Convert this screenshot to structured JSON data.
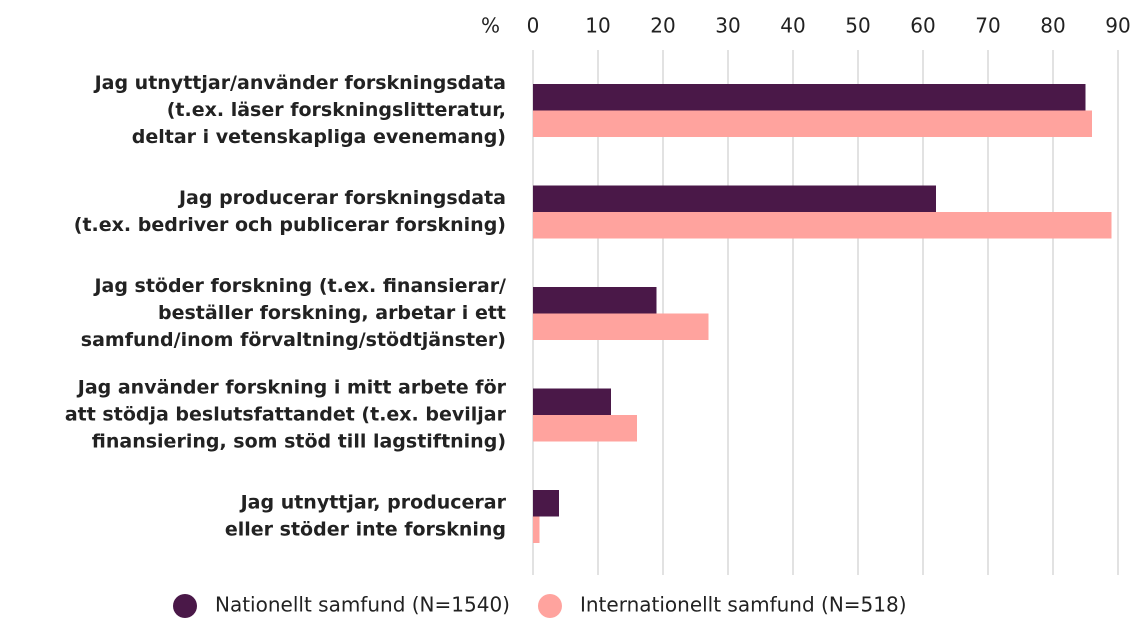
{
  "chart_data": {
    "type": "barh",
    "x_label": "%",
    "categories": [
      [
        "Jag utnyttjar/använder forskningsdata",
        "(t.ex. läser forskningslitteratur,",
        "deltar i vetenskapliga evenemang)"
      ],
      [
        "Jag producerar forskningsdata",
        "(t.ex. bedriver och publicerar forskning)"
      ],
      [
        "Jag stöder forskning (t.ex. finansierar/",
        "beställer forskning, arbetar i ett",
        "samfund/inom förvaltning/stödtjänster)"
      ],
      [
        "Jag använder forskning i mitt arbete för",
        "att stödja beslutsfattandet (t.ex. beviljar",
        "finansiering, som stöd till lagstiftning)"
      ],
      [
        "Jag utnyttjar, producerar",
        "eller stöder inte forskning"
      ]
    ],
    "series": [
      {
        "name": "Nationellt samfund (N=1540)",
        "color": "#4a1848",
        "values": [
          85,
          62,
          19,
          12,
          4
        ]
      },
      {
        "name": "Internationellt samfund (N=518)",
        "color": "#ffa39e",
        "values": [
          86,
          89,
          27,
          16,
          1
        ]
      }
    ],
    "xlim": [
      0,
      90
    ],
    "xticks": [
      0,
      10,
      20,
      30,
      40,
      50,
      60,
      70,
      80,
      90
    ],
    "grid": true,
    "legend": "bottom"
  }
}
